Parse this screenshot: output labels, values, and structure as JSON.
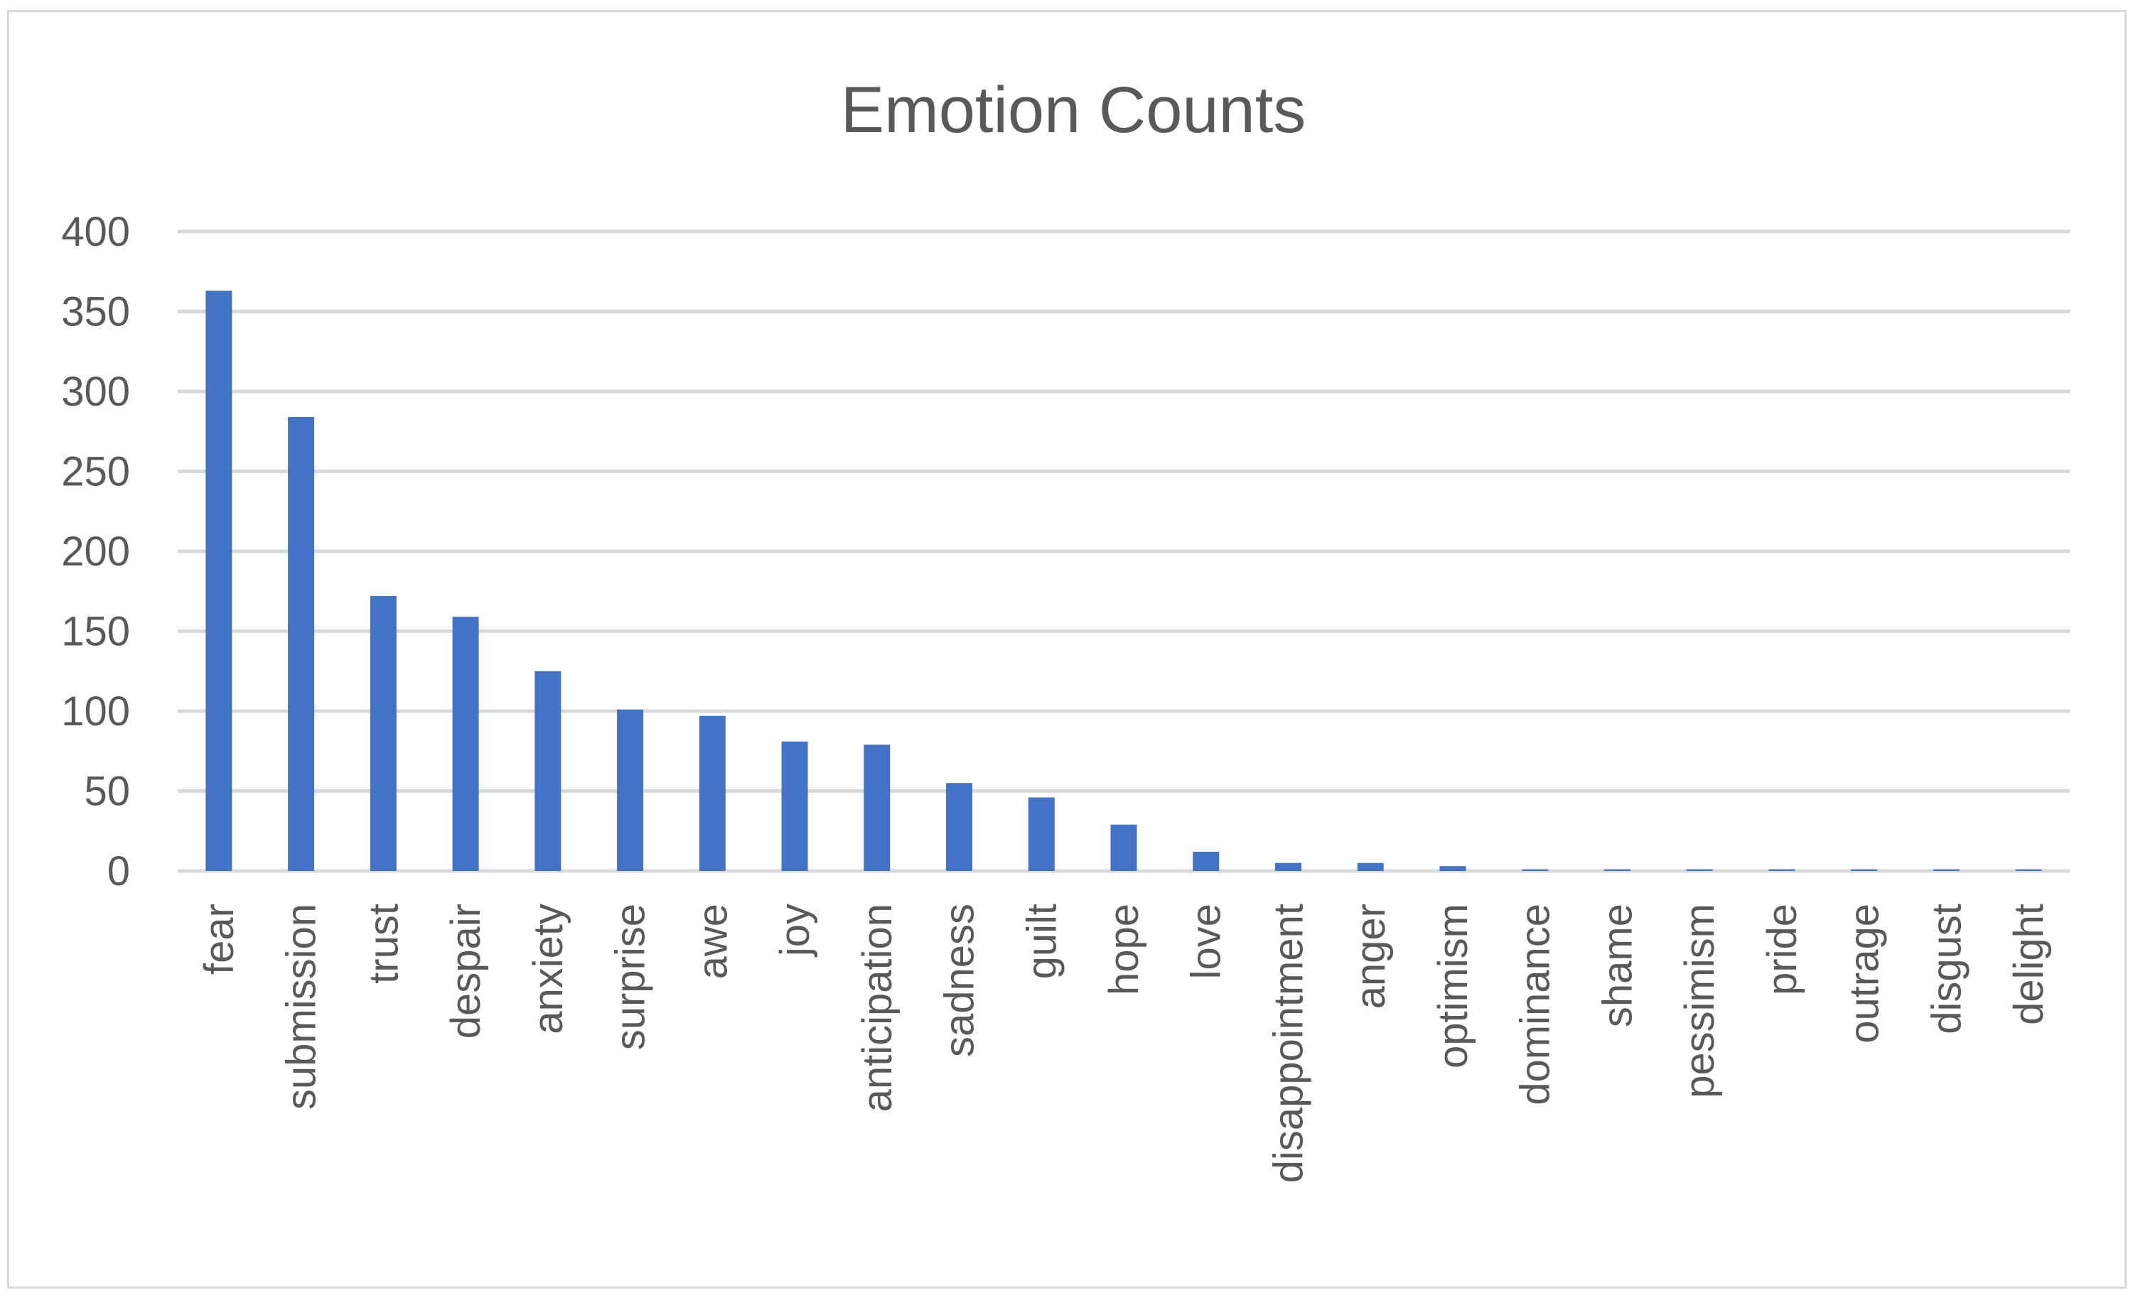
{
  "chart_data": {
    "type": "bar",
    "title": "Emotion Counts",
    "xlabel": "",
    "ylabel": "",
    "ylim": [
      0,
      400
    ],
    "yticks": [
      "0",
      "50",
      "100",
      "150",
      "200",
      "250",
      "300",
      "350",
      "400"
    ],
    "grid": true,
    "legend": "none",
    "bar_color": "#4472c4",
    "categories": [
      "fear",
      "submission",
      "trust",
      "despair",
      "anxiety",
      "surprise",
      "awe",
      "joy",
      "anticipation",
      "sadness",
      "guilt",
      "hope",
      "love",
      "disappointment",
      "anger",
      "optimism",
      "dominance",
      "shame",
      "pessimism",
      "pride",
      "outrage",
      "disgust",
      "delight"
    ],
    "values": [
      363,
      284,
      172,
      159,
      125,
      101,
      97,
      81,
      79,
      55,
      46,
      29,
      12,
      5,
      5,
      3,
      1,
      1,
      1,
      1,
      1,
      1,
      1
    ]
  }
}
